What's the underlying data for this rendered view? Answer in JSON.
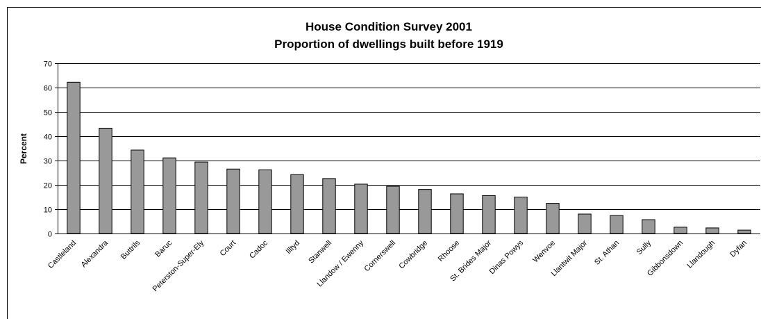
{
  "chart_data": {
    "type": "bar",
    "title": "House Condition Survey 2001",
    "subtitle": "Proportion of dwellings built before 1919",
    "y_label": "Percent",
    "categories": [
      "Castleland",
      "Alexandra",
      "Buttrils",
      "Baruc",
      "Peterston-Super-Ely",
      "Court",
      "Cadoc",
      "Illtyd",
      "Stanwell",
      "Llandow / Ewenny",
      "Cornerswell",
      "Cowbridge",
      "Rhoose",
      "St. Brides Major",
      "Dinas Powys",
      "Wenvoe",
      "Llantwit Major",
      "St. Athan",
      "Sully",
      "Gibbonsdown",
      "Llandough",
      "Dyfan"
    ],
    "values": [
      62.2,
      43.3,
      34.3,
      31.1,
      29.4,
      26.5,
      26.2,
      24.2,
      22.6,
      20.3,
      19.4,
      18.1,
      16.3,
      15.6,
      15.0,
      12.4,
      8.0,
      7.4,
      5.7,
      2.6,
      2.3,
      1.4
    ],
    "color": "#999999",
    "ylim": [
      0,
      70
    ],
    "yticks": [
      0,
      10,
      20,
      30,
      40,
      50,
      60,
      70
    ],
    "grid": true
  }
}
